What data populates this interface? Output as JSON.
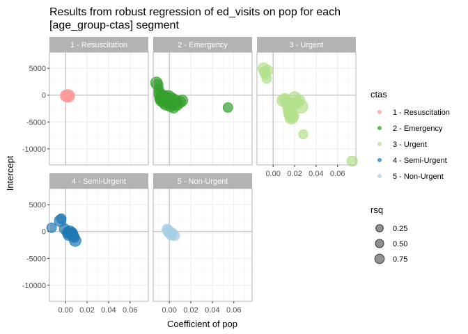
{
  "chart_data": {
    "type": "scatter",
    "title": "Results from robust regression of ed_visits on pop for each",
    "subtitle": "[age_group-ctas] segment",
    "xlabel": "Coefficient of pop",
    "ylabel": "Intercept",
    "xlim": [
      -0.015,
      0.077
    ],
    "ylim": [
      -13000,
      8000
    ],
    "x_ticks": [
      0.0,
      0.02,
      0.04,
      0.06
    ],
    "x_tick_labels": [
      "0.00",
      "0.02",
      "0.04",
      "0.06"
    ],
    "y_ticks": [
      5000,
      0,
      -5000,
      -10000
    ],
    "y_tick_labels": [
      "5000",
      "0",
      "-5000",
      "-10000"
    ],
    "grid": true,
    "legend_placement": "right",
    "color_legend": {
      "title": "ctas",
      "entries": [
        "1 - Resuscitation",
        "2 - Emergency",
        "3 - Urgent",
        "4 - Semi-Urgent",
        "5 - Non-Urgent"
      ],
      "colors": [
        "#FB9A99",
        "#33A02C",
        "#B2DF8A",
        "#1F78B4",
        "#A6CEE3"
      ]
    },
    "size_legend": {
      "title": "rsq",
      "values": [
        0.25,
        0.5,
        0.75
      ],
      "labels": [
        "0.25",
        "0.50",
        "0.75"
      ]
    },
    "panels": [
      {
        "label": "1 - Resuscitation",
        "color": "#FB9A99",
        "points": [
          {
            "x": 0.0005,
            "y": -100,
            "rsq": 0.6
          },
          {
            "x": 0.001,
            "y": -200,
            "rsq": 0.55
          },
          {
            "x": 0.0025,
            "y": -150,
            "rsq": 0.7
          },
          {
            "x": 0.003,
            "y": -100,
            "rsq": 0.5
          }
        ]
      },
      {
        "label": "2 - Emergency",
        "color": "#33A02C",
        "points": [
          {
            "x": -0.012,
            "y": 2300,
            "rsq": 0.6
          },
          {
            "x": -0.011,
            "y": 1900,
            "rsq": 0.55
          },
          {
            "x": -0.01,
            "y": 1000,
            "rsq": 0.5
          },
          {
            "x": -0.009,
            "y": 200,
            "rsq": 0.6
          },
          {
            "x": -0.008,
            "y": -500,
            "rsq": 0.65
          },
          {
            "x": -0.007,
            "y": -900,
            "rsq": 0.7
          },
          {
            "x": -0.006,
            "y": -300,
            "rsq": 0.75
          },
          {
            "x": -0.005,
            "y": -1200,
            "rsq": 0.7
          },
          {
            "x": -0.004,
            "y": -600,
            "rsq": 0.75
          },
          {
            "x": -0.003,
            "y": -1600,
            "rsq": 0.7
          },
          {
            "x": -0.002,
            "y": -1000,
            "rsq": 0.75
          },
          {
            "x": -0.001,
            "y": -400,
            "rsq": 0.75
          },
          {
            "x": 0.0,
            "y": -1300,
            "rsq": 0.7
          },
          {
            "x": 0.001,
            "y": -2000,
            "rsq": 0.6
          },
          {
            "x": 0.002,
            "y": -800,
            "rsq": 0.75
          },
          {
            "x": 0.003,
            "y": -1500,
            "rsq": 0.7
          },
          {
            "x": 0.004,
            "y": -2300,
            "rsq": 0.55
          },
          {
            "x": 0.005,
            "y": -1100,
            "rsq": 0.7
          },
          {
            "x": 0.007,
            "y": -1700,
            "rsq": 0.65
          },
          {
            "x": 0.01,
            "y": -1300,
            "rsq": 0.55
          },
          {
            "x": 0.012,
            "y": -1000,
            "rsq": 0.55
          },
          {
            "x": 0.0545,
            "y": -2300,
            "rsq": 0.45
          }
        ]
      },
      {
        "label": "3 - Urgent",
        "color": "#B2DF8A",
        "points": [
          {
            "x": -0.009,
            "y": 5000,
            "rsq": 0.55
          },
          {
            "x": -0.008,
            "y": 4300,
            "rsq": 0.5
          },
          {
            "x": -0.007,
            "y": 3800,
            "rsq": 0.45
          },
          {
            "x": -0.006,
            "y": 3100,
            "rsq": 0.45
          },
          {
            "x": -0.005,
            "y": 4600,
            "rsq": 0.5
          },
          {
            "x": 0.009,
            "y": -1000,
            "rsq": 0.6
          },
          {
            "x": 0.011,
            "y": -700,
            "rsq": 0.55
          },
          {
            "x": 0.013,
            "y": -1500,
            "rsq": 0.6
          },
          {
            "x": 0.014,
            "y": -2400,
            "rsq": 0.55
          },
          {
            "x": 0.015,
            "y": -3100,
            "rsq": 0.6
          },
          {
            "x": 0.016,
            "y": -3600,
            "rsq": 0.65
          },
          {
            "x": 0.017,
            "y": -4200,
            "rsq": 0.7
          },
          {
            "x": 0.018,
            "y": -3900,
            "rsq": 0.7
          },
          {
            "x": 0.019,
            "y": -1600,
            "rsq": 0.6
          },
          {
            "x": 0.02,
            "y": -500,
            "rsq": 0.65
          },
          {
            "x": 0.022,
            "y": -1400,
            "rsq": 0.6
          },
          {
            "x": 0.024,
            "y": -1000,
            "rsq": 0.6
          },
          {
            "x": 0.026,
            "y": -2100,
            "rsq": 0.75
          },
          {
            "x": 0.028,
            "y": -7300,
            "rsq": 0.4
          },
          {
            "x": 0.0735,
            "y": -12300,
            "rsq": 0.5
          }
        ]
      },
      {
        "label": "4 - Semi-Urgent",
        "color": "#1F78B4",
        "points": [
          {
            "x": -0.013,
            "y": 700,
            "rsq": 0.45
          },
          {
            "x": -0.005,
            "y": 2000,
            "rsq": 0.6
          },
          {
            "x": -0.004,
            "y": 2400,
            "rsq": 0.45
          },
          {
            "x": -0.001,
            "y": 500,
            "rsq": 0.5
          },
          {
            "x": 0.002,
            "y": -200,
            "rsq": 0.55
          },
          {
            "x": 0.003,
            "y": -600,
            "rsq": 0.6
          },
          {
            "x": 0.004,
            "y": -100,
            "rsq": 0.65
          },
          {
            "x": 0.005,
            "y": -400,
            "rsq": 0.6
          },
          {
            "x": 0.006,
            "y": -300,
            "rsq": 0.55
          },
          {
            "x": 0.007,
            "y": -800,
            "rsq": 0.55
          },
          {
            "x": 0.008,
            "y": -1100,
            "rsq": 0.5
          },
          {
            "x": 0.009,
            "y": -1700,
            "rsq": 0.6
          }
        ]
      },
      {
        "label": "5 - Non-Urgent",
        "color": "#A6CEE3",
        "points": [
          {
            "x": -0.002,
            "y": 400,
            "rsq": 0.5
          },
          {
            "x": -0.001,
            "y": 100,
            "rsq": 0.55
          },
          {
            "x": 0.0,
            "y": -200,
            "rsq": 0.55
          },
          {
            "x": 0.002,
            "y": -500,
            "rsq": 0.6
          },
          {
            "x": 0.003,
            "y": -300,
            "rsq": 0.45
          },
          {
            "x": 0.005,
            "y": -800,
            "rsq": 0.45
          }
        ]
      }
    ]
  }
}
